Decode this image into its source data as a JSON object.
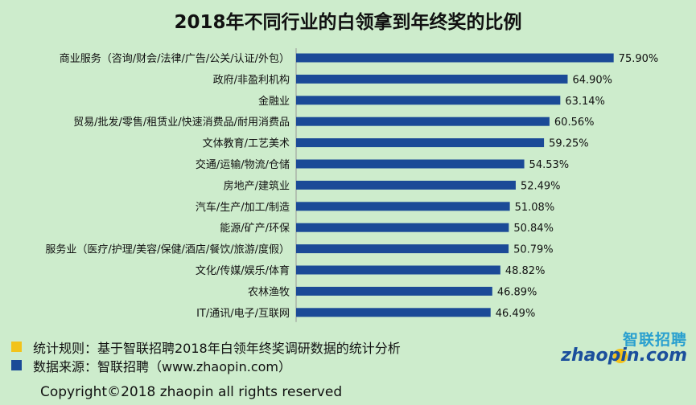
{
  "chart_data": {
    "type": "bar",
    "orientation": "horizontal",
    "title": "2018年不同行业的白领拿到年终奖的比例",
    "categories": [
      "商业服务（咨询/财会/法律/广告/公关/认证/外包）",
      "政府/非盈利机构",
      "金融业",
      "贸易/批发/零售/租赁业/快速消费品/耐用消费品",
      "文体教育/工艺美术",
      "交通/运输/物流/仓储",
      "房地产/建筑业",
      "汽车/生产/加工/制造",
      "能源/矿产/环保",
      "服务业（医疗/护理/美容/保健/酒店/餐饮/旅游/度假）",
      "文化/传媒/娱乐/体育",
      "农林渔牧",
      "IT/通讯/电子/互联网"
    ],
    "values": [
      75.9,
      64.9,
      63.14,
      60.56,
      59.25,
      54.53,
      52.49,
      51.08,
      50.84,
      50.79,
      48.82,
      46.89,
      46.49
    ],
    "value_labels": [
      "75.90%",
      "64.90%",
      "63.14%",
      "60.56%",
      "59.25%",
      "54.53%",
      "52.49%",
      "51.08%",
      "50.84%",
      "50.79%",
      "48.82%",
      "46.89%",
      "46.49%"
    ],
    "xlim": [
      0,
      100
    ],
    "grid": false,
    "bar_color": "#1b4a97"
  },
  "notes": {
    "rule_text": "统计规则：基于智联招聘2018年白领年终奖调研数据的统计分析",
    "rule_color": "#f2c31a",
    "source_text": "数据来源：智联招聘（www.zhaopin.com）",
    "source_color": "#1b4a97"
  },
  "logo": {
    "cn": "智联招聘",
    "en": "zhaopin.com"
  },
  "copyright": "Copyright©2018 zhaopin all rights reserved",
  "background": "#cdeccc"
}
